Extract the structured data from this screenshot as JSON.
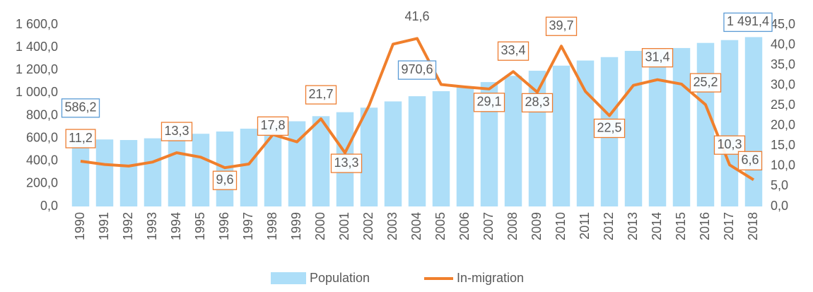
{
  "chart_data": {
    "type": "bar-line",
    "categories": [
      "1990",
      "1991",
      "1992",
      "1993",
      "1994",
      "1995",
      "1996",
      "1997",
      "1998",
      "1999",
      "2000",
      "2001",
      "2002",
      "2003",
      "2004",
      "2005",
      "2006",
      "2007",
      "2008",
      "2009",
      "2010",
      "2011",
      "2012",
      "2013",
      "2014",
      "2015",
      "2016",
      "2017",
      "2018"
    ],
    "series": [
      {
        "name": "Population",
        "color": "#addef8",
        "axis": "y",
        "values": [
          586.2,
          590,
          585,
          600,
          615,
          640,
          660,
          685,
          715,
          750,
          795,
          830,
          870,
          925,
          970.6,
          1015,
          1050,
          1095,
          1150,
          1195,
          1240,
          1285,
          1315,
          1370,
          1390,
          1395,
          1440,
          1465,
          1491.4
        ],
        "value_labels": [
          "586,2",
          null,
          null,
          null,
          null,
          null,
          null,
          null,
          null,
          null,
          null,
          null,
          null,
          null,
          "970,6",
          null,
          null,
          null,
          null,
          null,
          null,
          null,
          null,
          null,
          null,
          null,
          null,
          null,
          "1 491,4"
        ]
      },
      {
        "name": "In-migration",
        "color": "#f07f2c",
        "axis": "y2",
        "values": [
          11.2,
          10.4,
          10.0,
          11.0,
          13.3,
          12.2,
          9.6,
          10.5,
          17.8,
          16.0,
          21.7,
          13.3,
          25.0,
          40.2,
          41.6,
          30.2,
          29.6,
          29.1,
          33.4,
          28.3,
          39.7,
          28.5,
          22.5,
          30.0,
          31.4,
          30.3,
          25.2,
          10.3,
          6.6
        ],
        "value_labels": [
          "11,2",
          null,
          null,
          null,
          "13,3",
          null,
          "9,6",
          null,
          "17,8",
          null,
          "21,7",
          "13,3",
          null,
          null,
          "41,6",
          null,
          null,
          "29,1",
          "33,4",
          "28,3",
          "39,7",
          null,
          "22,5",
          null,
          "31,4",
          null,
          "25,2",
          "10,3",
          "6,6"
        ]
      }
    ],
    "ylim": [
      0,
      1600
    ],
    "yticks": [
      {
        "value": 0,
        "label": "0,0"
      },
      {
        "value": 200,
        "label": "200,0"
      },
      {
        "value": 400,
        "label": "400,0"
      },
      {
        "value": 600,
        "label": "600,0"
      },
      {
        "value": 800,
        "label": "800,0"
      },
      {
        "value": 1000,
        "label": "1 000,0"
      },
      {
        "value": 1200,
        "label": "1 200,0"
      },
      {
        "value": 1400,
        "label": "1 400,0"
      },
      {
        "value": 1600,
        "label": "1 600,0"
      }
    ],
    "y2lim": [
      0,
      45
    ],
    "y2ticks": [
      {
        "value": 0,
        "label": "0,0"
      },
      {
        "value": 5,
        "label": "5,0"
      },
      {
        "value": 10,
        "label": "10,0"
      },
      {
        "value": 15,
        "label": "15,0"
      },
      {
        "value": 20,
        "label": "20,0"
      },
      {
        "value": 25,
        "label": "25,0"
      },
      {
        "value": 30,
        "label": "30,0"
      },
      {
        "value": 35,
        "label": "35,0"
      },
      {
        "value": 40,
        "label": "40,0"
      },
      {
        "value": 45,
        "label": "45,0"
      }
    ],
    "legend": "bottom",
    "grid": false
  }
}
